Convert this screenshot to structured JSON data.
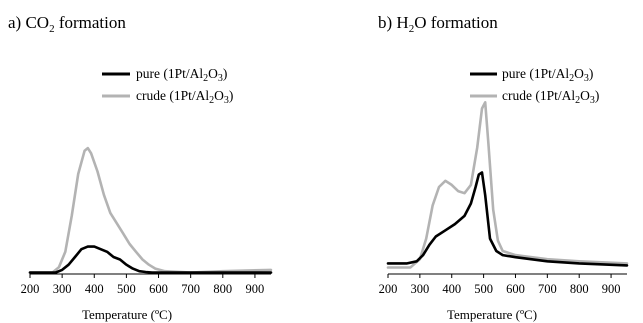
{
  "chart_data": [
    {
      "type": "line",
      "panel_label": "a)",
      "title": "formation",
      "title_species": {
        "main": "CO",
        "sub": "2"
      },
      "xlabel": "Temperature (ºC)",
      "ylabel": "",
      "xlim": [
        200,
        950
      ],
      "xticks": [
        200,
        300,
        400,
        500,
        600,
        700,
        800,
        900
      ],
      "y_axis_shown": false,
      "legend": "top-right",
      "series": [
        {
          "name": "pure (1Pt/Al2O3)",
          "label_parts": {
            "prefix": "pure (1Pt/Al",
            "sub1": "2",
            "mid": "O",
            "sub2": "3",
            "suffix": ")"
          },
          "color": "#000000",
          "x": [
            200,
            280,
            300,
            320,
            340,
            360,
            380,
            400,
            420,
            440,
            460,
            480,
            500,
            520,
            540,
            560,
            580,
            600,
            700,
            800,
            950
          ],
          "y": [
            0.0,
            0.0,
            0.01,
            0.03,
            0.06,
            0.09,
            0.1,
            0.1,
            0.09,
            0.08,
            0.06,
            0.05,
            0.03,
            0.015,
            0.005,
            0.002,
            0.0,
            0.0,
            0.0,
            0.0,
            0.0
          ]
        },
        {
          "name": "crude (1Pt/Al2O3)",
          "label_parts": {
            "prefix": "crude (1Pt/Al",
            "sub1": "2",
            "mid": "O",
            "sub2": "3",
            "suffix": ")"
          },
          "color": "#b3b3b3",
          "x": [
            200,
            270,
            290,
            310,
            330,
            350,
            370,
            380,
            390,
            410,
            430,
            450,
            470,
            490,
            510,
            530,
            550,
            570,
            590,
            620,
            700,
            800,
            950
          ],
          "y": [
            0.0,
            0.0,
            0.02,
            0.08,
            0.22,
            0.38,
            0.47,
            0.48,
            0.46,
            0.39,
            0.3,
            0.23,
            0.19,
            0.15,
            0.11,
            0.08,
            0.05,
            0.03,
            0.015,
            0.005,
            0.0,
            0.005,
            0.01
          ]
        }
      ]
    },
    {
      "type": "line",
      "panel_label": "b)",
      "title": "formation",
      "title_species": {
        "pre": "H",
        "sub": "2",
        "post": "O"
      },
      "xlabel": "Temperature (ºC)",
      "ylabel": "",
      "xlim": [
        200,
        950
      ],
      "xticks": [
        200,
        300,
        400,
        500,
        600,
        700,
        800,
        900
      ],
      "y_axis_shown": false,
      "legend": "top-right",
      "series": [
        {
          "name": "pure (1Pt/Al2O3)",
          "label_parts": {
            "prefix": "pure (1Pt/Al",
            "sub1": "2",
            "mid": "O",
            "sub2": "3",
            "suffix": ")"
          },
          "color": "#000000",
          "x": [
            200,
            260,
            290,
            310,
            330,
            350,
            380,
            410,
            440,
            460,
            475,
            485,
            495,
            505,
            520,
            540,
            560,
            600,
            700,
            800,
            950
          ],
          "y": [
            0.02,
            0.02,
            0.03,
            0.06,
            0.11,
            0.15,
            0.18,
            0.21,
            0.25,
            0.31,
            0.39,
            0.45,
            0.46,
            0.35,
            0.14,
            0.08,
            0.06,
            0.05,
            0.03,
            0.02,
            0.01
          ]
        },
        {
          "name": "crude (1Pt/Al2O3)",
          "label_parts": {
            "prefix": "crude (1Pt/Al",
            "sub1": "2",
            "mid": "O",
            "sub2": "3",
            "suffix": ")"
          },
          "color": "#b3b3b3",
          "x": [
            200,
            270,
            300,
            320,
            340,
            360,
            380,
            400,
            420,
            440,
            460,
            480,
            495,
            505,
            515,
            530,
            545,
            560,
            600,
            700,
            800,
            950
          ],
          "y": [
            0.0,
            0.0,
            0.04,
            0.14,
            0.3,
            0.39,
            0.42,
            0.4,
            0.37,
            0.36,
            0.4,
            0.58,
            0.77,
            0.8,
            0.6,
            0.28,
            0.13,
            0.08,
            0.06,
            0.04,
            0.03,
            0.02
          ]
        }
      ]
    }
  ]
}
